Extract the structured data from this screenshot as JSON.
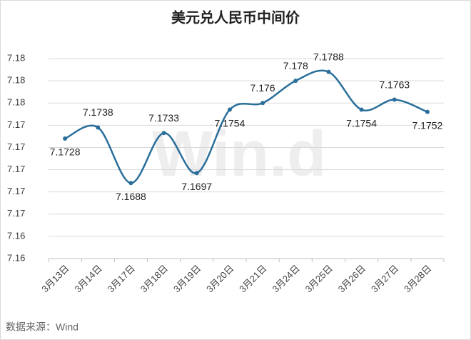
{
  "chart_data": {
    "type": "line",
    "title": "美元兑人民币中间价",
    "categories": [
      "3月13日",
      "3月14日",
      "3月17日",
      "3月18日",
      "3月19日",
      "3月20日",
      "3月21日",
      "3月24日",
      "3月25日",
      "3月26日",
      "3月27日",
      "3月28日"
    ],
    "series": [
      {
        "name": "美元兑人民币中间价",
        "color": "#2a6f9b",
        "values": [
          7.1728,
          7.1738,
          7.1688,
          7.1733,
          7.1697,
          7.1754,
          7.176,
          7.178,
          7.1788,
          7.1754,
          7.1763,
          7.1752
        ]
      }
    ],
    "ylim": [
      7.162,
      7.18
    ],
    "yticks": [
      {
        "value": 7.162,
        "label": "7.16"
      },
      {
        "value": 7.164,
        "label": "7.16"
      },
      {
        "value": 7.166,
        "label": "7.17"
      },
      {
        "value": 7.168,
        "label": "7.17"
      },
      {
        "value": 7.17,
        "label": "7.17"
      },
      {
        "value": 7.172,
        "label": "7.17"
      },
      {
        "value": 7.174,
        "label": "7.17"
      },
      {
        "value": 7.176,
        "label": "7.18"
      },
      {
        "value": 7.178,
        "label": "7.18"
      },
      {
        "value": 7.18,
        "label": "7.18"
      }
    ],
    "grid": true,
    "smooth": true,
    "watermark": "Win.d",
    "source": "数据来源：Wind"
  }
}
